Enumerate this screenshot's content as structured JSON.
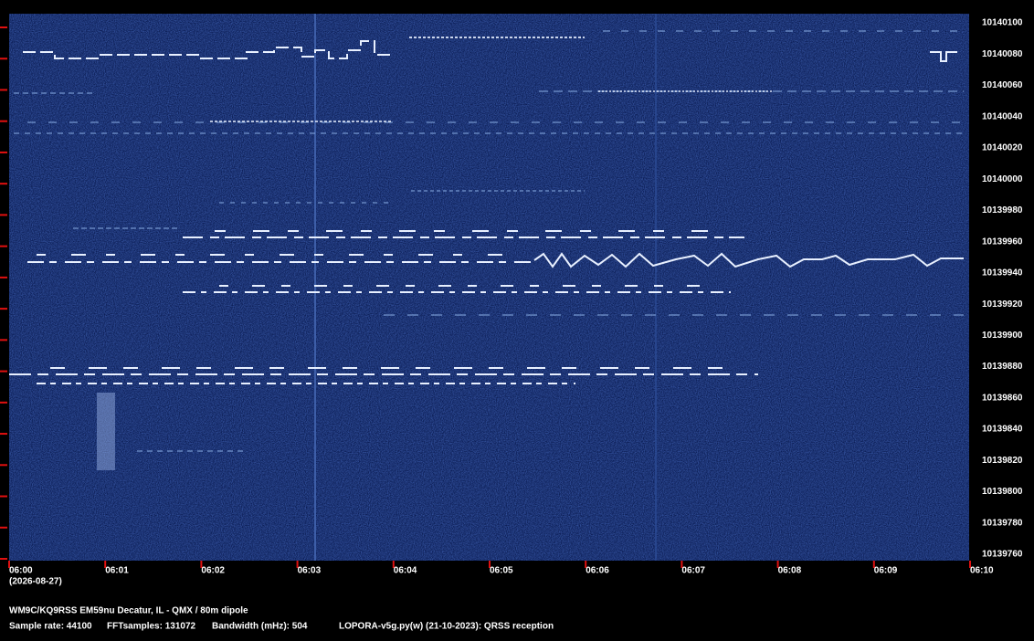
{
  "axes": {
    "frequency_labels": [
      "10140100",
      "10140080",
      "10140060",
      "10140040",
      "10140020",
      "10140000",
      "10139980",
      "10139960",
      "10139940",
      "10139920",
      "10139900",
      "10139880",
      "10139860",
      "10139840",
      "10139820",
      "10139800",
      "10139780",
      "10139760"
    ],
    "time_labels": [
      "06:00",
      "06:01",
      "06:02",
      "06:03",
      "06:04",
      "06:05",
      "06:06",
      "06:07",
      "06:08",
      "06:09",
      "06:10"
    ],
    "date": "(2026-08-27)"
  },
  "footer": {
    "station": "WM9C/KQ9RSS EM59nu Decatur, IL - QMX / 80m dipole",
    "sample_rate": "Sample rate: 44100",
    "fft_samples": "FFTsamples: 131072",
    "bandwidth": "Bandwidth (mHz): 504",
    "software": "LOPORA-v5g.py(w) (21-10-2023): QRSS reception"
  }
}
